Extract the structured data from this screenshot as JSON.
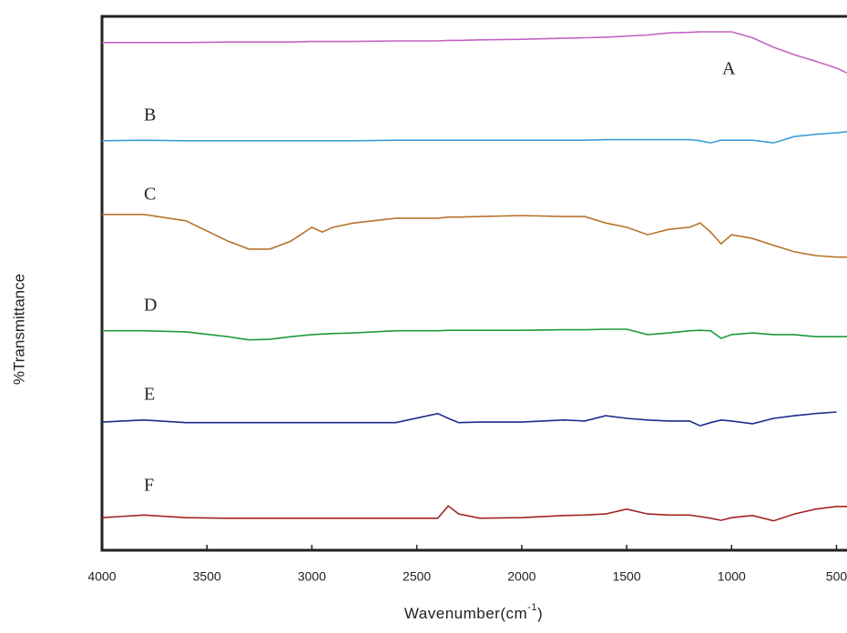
{
  "chart_data": {
    "type": "line",
    "y_label": "%Transmittance",
    "x_label": {
      "text": "Wavenumber(cm",
      "sup": "-1",
      "close": ")"
    },
    "xlim": [
      4000,
      450
    ],
    "ylim": [
      0,
      100
    ],
    "xticks": [
      4000,
      3500,
      3000,
      2500,
      2000,
      1500,
      1000,
      500
    ],
    "x": [
      4000,
      3800,
      3600,
      3400,
      3300,
      3200,
      3100,
      3000,
      2950,
      2900,
      2800,
      2600,
      2400,
      2350,
      2300,
      2200,
      2000,
      1800,
      1700,
      1600,
      1500,
      1400,
      1300,
      1200,
      1150,
      1100,
      1050,
      1000,
      900,
      800,
      700,
      600,
      500,
      450
    ],
    "series": [
      {
        "name": "A",
        "color": "#c463c4",
        "values": [
          95.1,
          95.1,
          95.1,
          95.2,
          95.2,
          95.2,
          95.2,
          95.3,
          95.3,
          95.3,
          95.3,
          95.4,
          95.4,
          95.5,
          95.5,
          95.6,
          95.7,
          95.9,
          96.0,
          96.1,
          96.3,
          96.5,
          96.9,
          97.0,
          97.1,
          97.1,
          97.1,
          97.1,
          96.0,
          94.2,
          92.8,
          91.6,
          90.3,
          89.4
        ]
      },
      {
        "name": "B",
        "color": "#3c9bd8",
        "values": [
          76.7,
          76.8,
          76.7,
          76.7,
          76.7,
          76.7,
          76.7,
          76.7,
          76.7,
          76.7,
          76.7,
          76.8,
          76.8,
          76.8,
          76.8,
          76.8,
          76.8,
          76.8,
          76.8,
          76.9,
          76.9,
          76.9,
          76.9,
          76.9,
          76.7,
          76.3,
          76.8,
          76.8,
          76.8,
          76.3,
          77.5,
          77.9,
          78.2,
          78.4
        ]
      },
      {
        "name": "C",
        "color": "#b8732c",
        "values": [
          62.9,
          62.9,
          61.7,
          57.9,
          56.4,
          56.4,
          57.9,
          60.5,
          59.6,
          60.5,
          61.3,
          62.2,
          62.2,
          62.4,
          62.4,
          62.5,
          62.7,
          62.5,
          62.5,
          61.3,
          60.5,
          59.1,
          60.1,
          60.5,
          61.3,
          59.6,
          57.4,
          59.1,
          58.4,
          57.1,
          55.9,
          55.2,
          54.9,
          54.9
        ]
      },
      {
        "name": "D",
        "color": "#1e9a3c",
        "values": [
          41.1,
          41.1,
          40.9,
          40.0,
          39.4,
          39.5,
          40.0,
          40.4,
          40.5,
          40.6,
          40.7,
          41.1,
          41.1,
          41.2,
          41.2,
          41.2,
          41.2,
          41.3,
          41.3,
          41.4,
          41.4,
          40.4,
          40.7,
          41.1,
          41.2,
          41.1,
          39.7,
          40.4,
          40.7,
          40.4,
          40.4,
          40.0,
          40.0,
          40.0
        ]
      },
      {
        "name": "E",
        "color": "#1c2c8a",
        "values": [
          24.0,
          24.4,
          23.9,
          23.9,
          23.9,
          23.9,
          23.9,
          23.9,
          23.9,
          23.9,
          23.9,
          23.9,
          25.6,
          24.7,
          23.9,
          24.0,
          24.0,
          24.4,
          24.2,
          25.2,
          24.7,
          24.4,
          24.2,
          24.2,
          23.3,
          23.9,
          24.4,
          24.2,
          23.7,
          24.7,
          25.2,
          25.6,
          25.9,
          null
        ]
      },
      {
        "name": "F",
        "color": "#a22424",
        "values": [
          6.1,
          6.6,
          6.1,
          6.0,
          6.0,
          6.0,
          6.0,
          6.0,
          6.0,
          6.0,
          6.0,
          6.0,
          6.0,
          8.3,
          6.8,
          6.0,
          6.1,
          6.5,
          6.6,
          6.8,
          7.7,
          6.8,
          6.6,
          6.6,
          6.3,
          6.0,
          5.6,
          6.1,
          6.5,
          5.5,
          6.8,
          7.7,
          8.2,
          8.2
        ]
      }
    ]
  }
}
